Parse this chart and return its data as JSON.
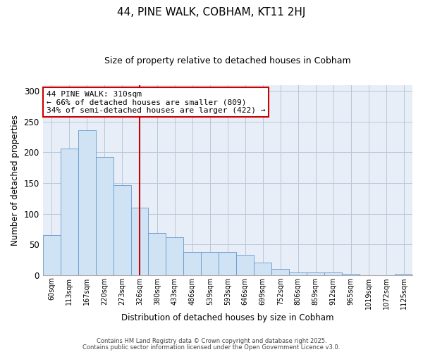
{
  "title": "44, PINE WALK, COBHAM, KT11 2HJ",
  "subtitle": "Size of property relative to detached houses in Cobham",
  "xlabel": "Distribution of detached houses by size in Cobham",
  "ylabel": "Number of detached properties",
  "bar_labels": [
    "60sqm",
    "113sqm",
    "167sqm",
    "220sqm",
    "273sqm",
    "326sqm",
    "380sqm",
    "433sqm",
    "486sqm",
    "539sqm",
    "593sqm",
    "646sqm",
    "699sqm",
    "752sqm",
    "806sqm",
    "859sqm",
    "912sqm",
    "965sqm",
    "1019sqm",
    "1072sqm",
    "1125sqm"
  ],
  "bar_values": [
    65,
    206,
    236,
    193,
    147,
    110,
    68,
    62,
    38,
    38,
    38,
    33,
    20,
    10,
    4,
    4,
    4,
    2,
    0,
    0,
    2
  ],
  "bar_color": "#d0e3f5",
  "bar_edge_color": "#6699cc",
  "vline_position": 5.5,
  "vline_color": "#cc0000",
  "annotation_title": "44 PINE WALK: 310sqm",
  "annotation_line1": "← 66% of detached houses are smaller (809)",
  "annotation_line2": "34% of semi-detached houses are larger (422) →",
  "annotation_box_color": "#ffffff",
  "annotation_box_edge_color": "#cc0000",
  "ylim": [
    0,
    310
  ],
  "yticks": [
    0,
    50,
    100,
    150,
    200,
    250,
    300
  ],
  "footer1": "Contains HM Land Registry data © Crown copyright and database right 2025.",
  "footer2": "Contains public sector information licensed under the Open Government Licence v3.0.",
  "background_color": "#ffffff",
  "plot_bg_color": "#e8eef8",
  "grid_color": "#b8c8d8"
}
